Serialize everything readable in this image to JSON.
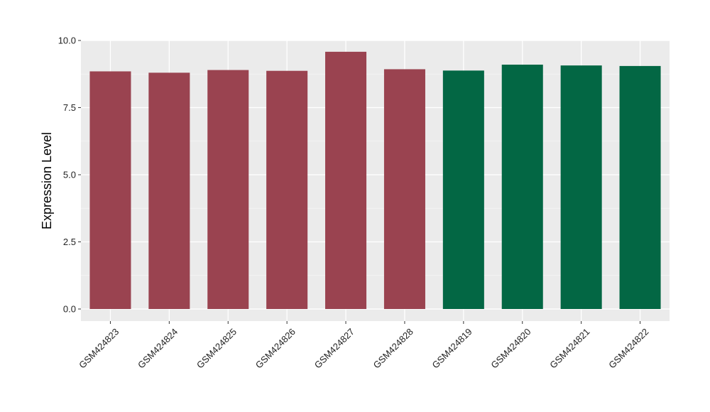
{
  "chart_data": {
    "type": "bar",
    "title": "",
    "xlabel": "",
    "ylabel": "Expression Level",
    "categories": [
      "GSM424823",
      "GSM424824",
      "GSM424825",
      "GSM424826",
      "GSM424827",
      "GSM424828",
      "GSM424819",
      "GSM424820",
      "GSM424821",
      "GSM424822"
    ],
    "values": [
      8.85,
      8.8,
      8.9,
      8.87,
      9.58,
      8.93,
      8.88,
      9.1,
      9.07,
      9.05
    ],
    "bar_colors": [
      "#9a4350",
      "#9a4350",
      "#9a4350",
      "#9a4350",
      "#9a4350",
      "#9a4350",
      "#036744",
      "#036744",
      "#036744",
      "#036744"
    ],
    "ylim": [
      -0.45,
      10.0
    ],
    "yticks": [
      0.0,
      2.5,
      5.0,
      7.5,
      10.0
    ],
    "ytick_labels": [
      "0.0",
      "2.5",
      "5.0",
      "7.5",
      "10.0"
    ],
    "grid": true,
    "legend": "none"
  },
  "colors": {
    "panel_background": "#ebebeb",
    "grid_major": "#ffffff",
    "grid_minor": "#f5f5f5"
  }
}
